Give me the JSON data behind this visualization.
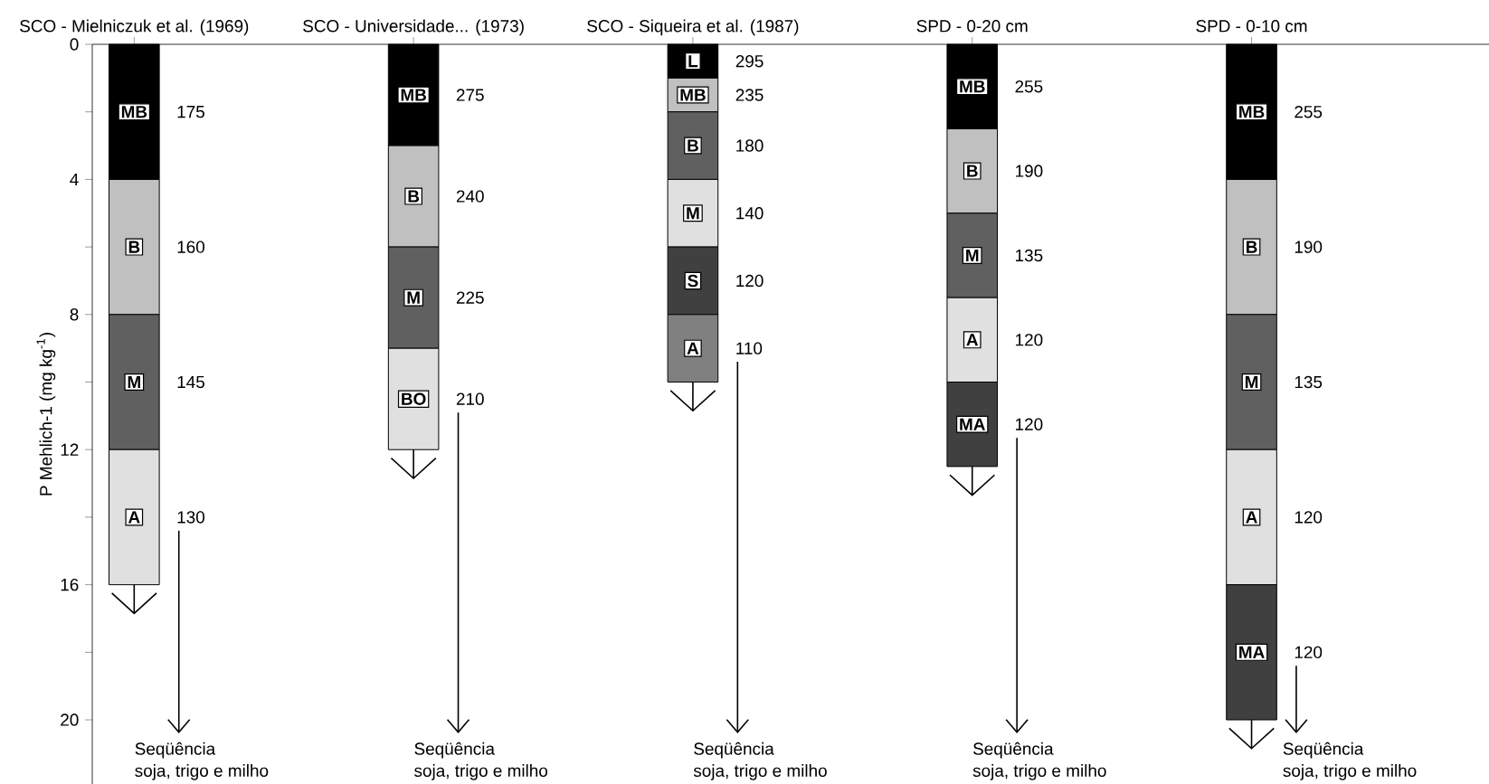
{
  "chart_data": {
    "type": "bar",
    "stacked": true,
    "ylabel": "P Mehlich-1 (mg kg$^{-1}$)",
    "categories": [
      "SCO - Mielniczuk et al. (1969)",
      "SCO - Universidade... (1973)",
      "SCO - Siqueira et al. (1987)",
      "SPD - 0-20 cm",
      "SPD - 0-10 cm"
    ],
    "ylim": [
      21.9,
      0
    ],
    "yticks": [
      0,
      {
        "value": 2,
        "label": null
      },
      4,
      {
        "value": 6,
        "label": null
      },
      8,
      {
        "value": 10,
        "label": null
      },
      12,
      {
        "value": 14,
        "label": null
      },
      16,
      {
        "value": 18,
        "label": null
      },
      20
    ],
    "series": [
      {
        "values": [
          4,
          3,
          1,
          2.5,
          4
        ],
        "colors": [
          "#000000",
          "#000000",
          "#000000",
          "#000000",
          "#000000"
        ]
      },
      {
        "values": [
          4,
          3,
          1,
          2.5,
          4
        ],
        "colors": [
          "#c0c0c0",
          "#c0c0c0",
          "#c0c0c0",
          "#c0c0c0",
          "#c0c0c0"
        ]
      },
      {
        "values": [
          4,
          3,
          2,
          2.5,
          4
        ],
        "colors": [
          "#606060",
          "#606060",
          "#606060",
          "#606060",
          "#606060"
        ]
      },
      {
        "values": [
          4,
          3,
          2,
          2.5,
          4
        ],
        "colors": [
          "#e0e0e0",
          "#e0e0e0",
          "#e0e0e0",
          "#e0e0e0",
          "#e0e0e0"
        ]
      },
      {
        "values": [
          null,
          null,
          2,
          2.5,
          4
        ],
        "colors": [
          "#404040",
          "#404040",
          "#404040",
          "#404040",
          "#404040"
        ]
      },
      {
        "values": [
          null,
          null,
          2,
          null,
          null
        ],
        "colors": [
          "#808080",
          "#808080",
          "#808080",
          "#808080",
          "#808080"
        ]
      }
    ],
    "annotations": [
      "MB",
      "175",
      "B",
      "160",
      "M",
      "145",
      "A",
      "130",
      "MB",
      "275",
      "B",
      "240",
      "M",
      "225",
      "BO",
      "210",
      "L",
      "295",
      "MB",
      "235",
      "B",
      "180",
      "M",
      "140",
      "S",
      "120",
      "A",
      "110",
      "MB",
      "255",
      "B",
      "190",
      "M",
      "135",
      "A",
      "120",
      "MA",
      "120",
      "MB",
      "255",
      "B",
      "190",
      "M",
      "135",
      "A",
      "120",
      "MA",
      "120",
      "Seqüência",
      "soja, trigo e milho",
      "Seqüência",
      "soja, trigo e milho",
      "Seqüência",
      "soja, trigo e milho",
      "Seqüência",
      "soja, trigo e milho",
      "Seqüência",
      "soja, trigo e milho"
    ]
  }
}
